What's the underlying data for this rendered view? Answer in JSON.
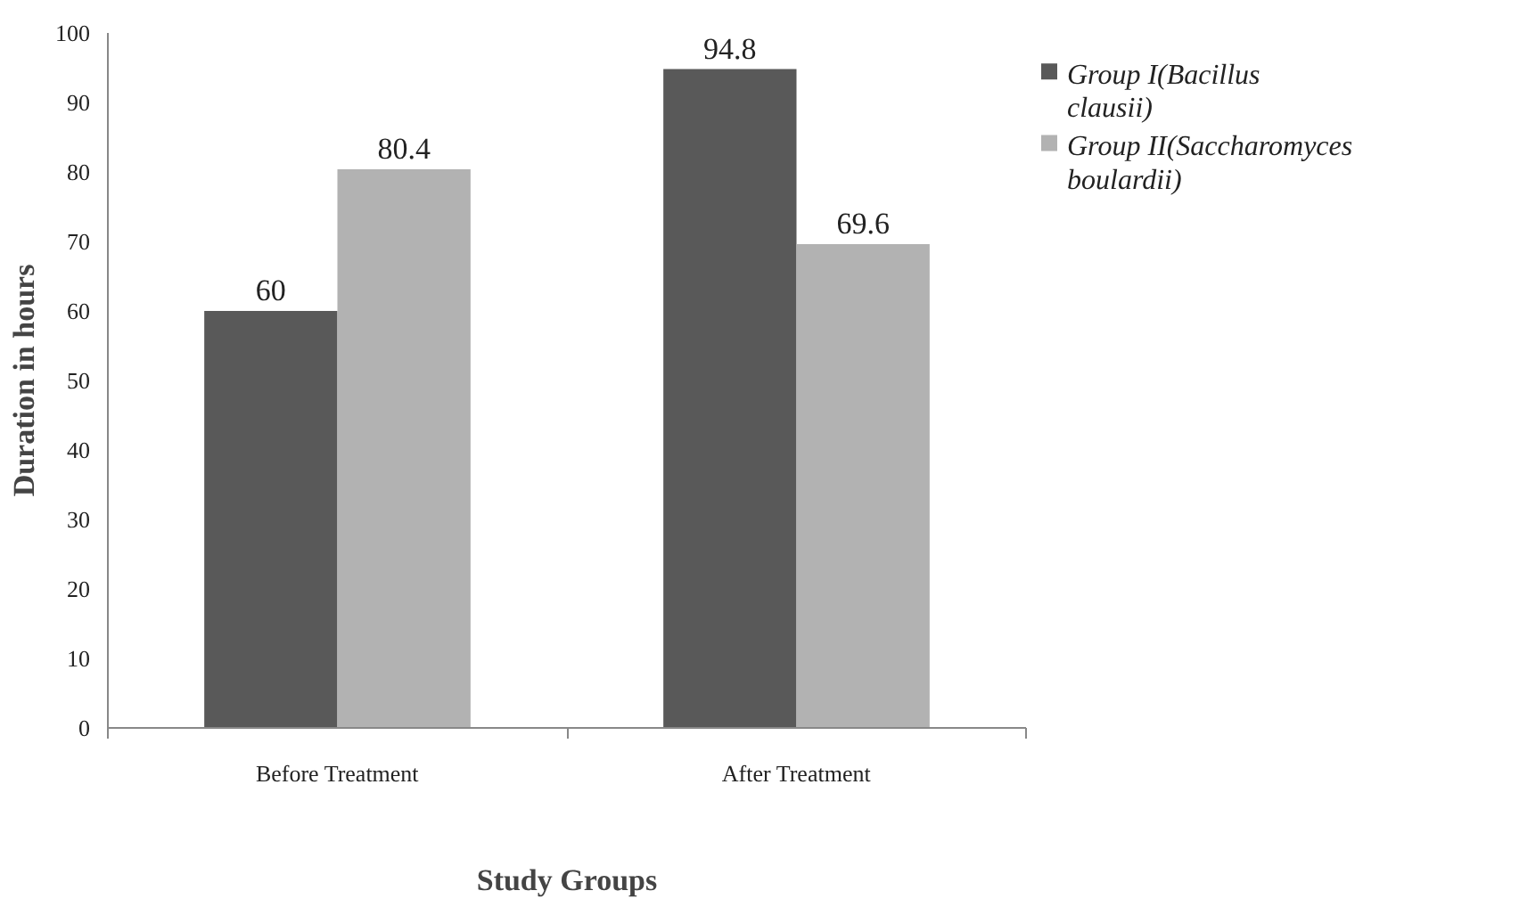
{
  "chart_data": {
    "type": "bar",
    "xlabel": "Study Groups",
    "ylabel": "Duration in hours",
    "categories": [
      "Before Treatment",
      "After Treatment"
    ],
    "series": [
      {
        "name": "Group I(Bacillus clausii)",
        "color": "#595959",
        "values": [
          60,
          94.8
        ]
      },
      {
        "name": "Group II(Saccharomyces boulardii)",
        "color": "#b2b2b2",
        "values": [
          80.4,
          69.6
        ]
      }
    ],
    "ylim": [
      0,
      100
    ],
    "yticks": [
      0,
      10,
      20,
      30,
      40,
      50,
      60,
      70,
      80,
      90,
      100
    ],
    "grid": false,
    "legend": "top right",
    "data_labels": true
  }
}
